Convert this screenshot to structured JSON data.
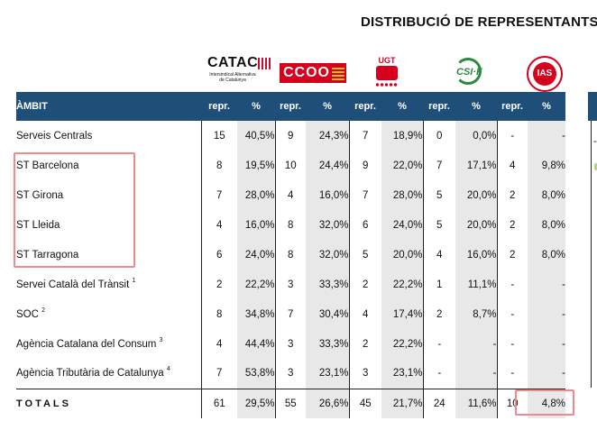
{
  "title": "DISTRIBUCIÓ DE REPRESENTANTS",
  "logos": {
    "catac": {
      "name": "CATAC",
      "subtitle": "Intersindical Alternativa de Catalunya"
    },
    "ccoo": {
      "name": "CCOO"
    },
    "ugt": {
      "name": "UGT"
    },
    "csif": {
      "name": "CSI·F"
    },
    "ias": {
      "name": "IAS"
    }
  },
  "colors": {
    "header_bg": "#1f4e79",
    "shade": "#e8e8e8",
    "highlight": "#ee8a8a"
  },
  "table": {
    "header": {
      "ambit": "ÀMBIT",
      "repr": "repr.",
      "pct": "%"
    },
    "rows": [
      {
        "ambit": "Serveis Centrals",
        "sup": "",
        "v": [
          "15",
          "40,5%",
          "9",
          "24,3%",
          "7",
          "18,9%",
          "0",
          "0,0%",
          "-",
          "-"
        ]
      },
      {
        "ambit": "ST Barcelona",
        "sup": "",
        "v": [
          "8",
          "19,5%",
          "10",
          "24,4%",
          "9",
          "22,0%",
          "7",
          "17,1%",
          "4",
          "9,8%"
        ]
      },
      {
        "ambit": "ST Girona",
        "sup": "",
        "v": [
          "7",
          "28,0%",
          "4",
          "16,0%",
          "7",
          "28,0%",
          "5",
          "20,0%",
          "2",
          "8,0%"
        ]
      },
      {
        "ambit": "ST Lleida",
        "sup": "",
        "v": [
          "4",
          "16,0%",
          "8",
          "32,0%",
          "6",
          "24,0%",
          "5",
          "20,0%",
          "2",
          "8,0%"
        ]
      },
      {
        "ambit": "ST Tarragona",
        "sup": "",
        "v": [
          "6",
          "24,0%",
          "8",
          "32,0%",
          "5",
          "20,0%",
          "4",
          "16,0%",
          "2",
          "8,0%"
        ]
      },
      {
        "ambit": "Servei Català del Trànsit",
        "sup": "1",
        "v": [
          "2",
          "22,2%",
          "3",
          "33,3%",
          "2",
          "22,2%",
          "1",
          "11,1%",
          "-",
          "-"
        ]
      },
      {
        "ambit": "SOC",
        "sup": "2",
        "v": [
          "8",
          "34,8%",
          "7",
          "30,4%",
          "4",
          "17,4%",
          "2",
          "8,7%",
          "-",
          "-"
        ]
      },
      {
        "ambit": "Agència Catalana del Consum",
        "sup": "3",
        "v": [
          "4",
          "44,4%",
          "3",
          "33,3%",
          "2",
          "22,2%",
          "-",
          "-",
          "-",
          "-"
        ]
      },
      {
        "ambit": "Agència Tributària de Catalunya",
        "sup": "4",
        "v": [
          "7",
          "53,8%",
          "3",
          "23,1%",
          "3",
          "23,1%",
          "-",
          "-",
          "-",
          "-"
        ]
      }
    ],
    "total": {
      "label": "TOTALS",
      "v": [
        "61",
        "29,5%",
        "55",
        "26,6%",
        "45",
        "21,7%",
        "24",
        "11,6%",
        "10",
        "4,8%"
      ]
    },
    "edge_dash": "-"
  }
}
